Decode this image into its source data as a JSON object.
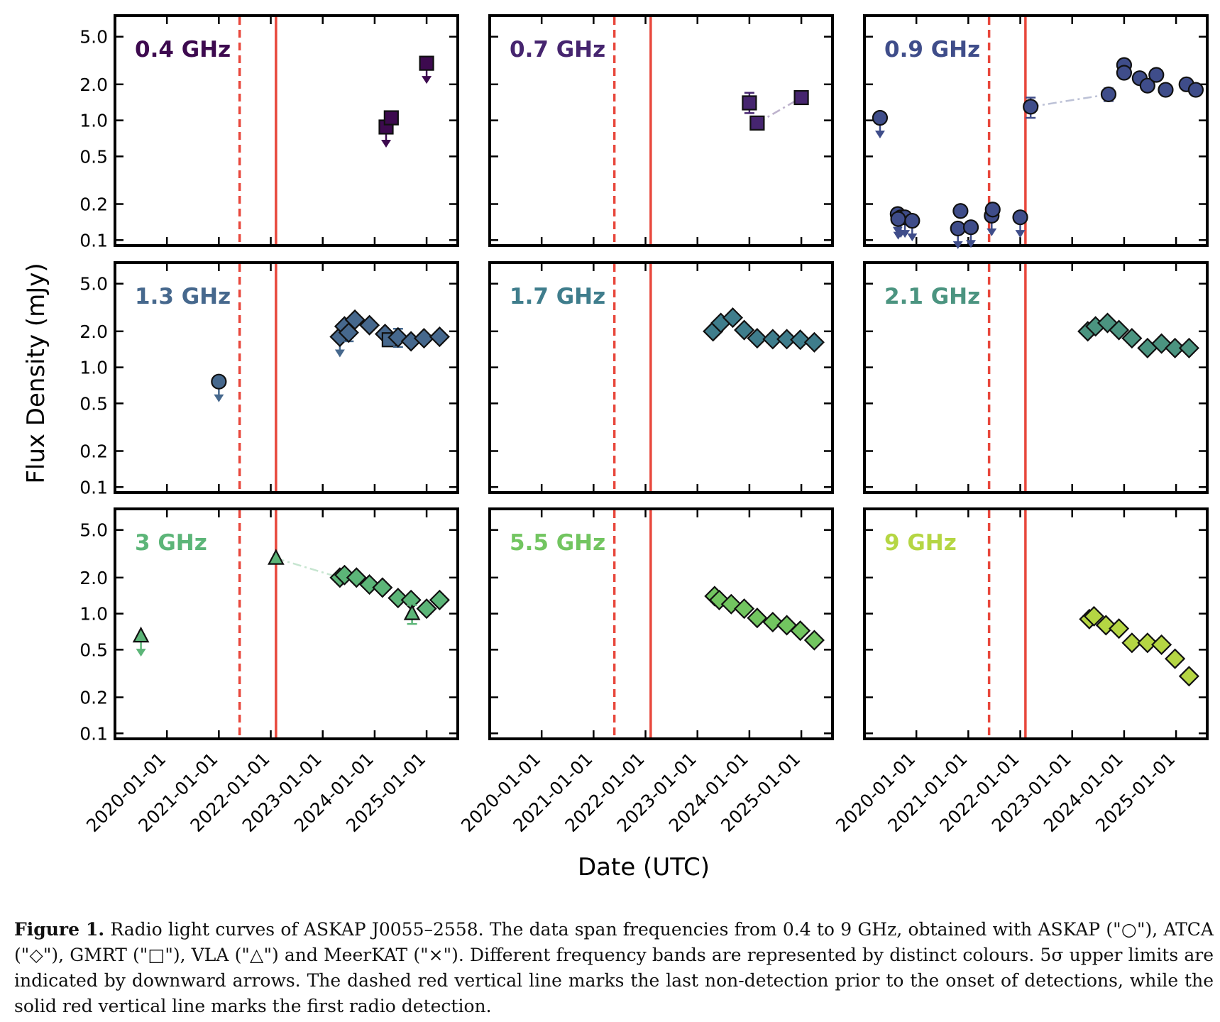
{
  "figure": {
    "caption_label": "Figure 1.",
    "caption_text": "Radio light curves of ASKAP J0055–2558. The data span frequencies from 0.4 to 9 GHz, obtained with ASKAP (\"○\"), ATCA (\"◇\"), GMRT (\"□\"), VLA (\"△\") and MeerKAT (\"×\"). Different frequency bands are represented by distinct colours. 5σ upper limits are indicated by downward arrows. The dashed red vertical line marks the last non-detection prior to the onset of detections, while the solid red vertical line marks the first radio detection."
  },
  "chart_data": {
    "type": "scatter",
    "title": "",
    "xlabel": "Date (UTC)",
    "ylabel": "Flux Density (mJy)",
    "yscale": "log",
    "xlim": [
      2019.0,
      2025.6
    ],
    "ylim": [
      0.09,
      7.5
    ],
    "x_ticks": [
      2020,
      2021,
      2022,
      2023,
      2024,
      2025
    ],
    "x_tick_labels": [
      "2020-01-01",
      "2021-01-01",
      "2022-01-01",
      "2023-01-01",
      "2024-01-01",
      "2025-01-01"
    ],
    "y_ticks": [
      0.1,
      0.2,
      0.5,
      1.0,
      2.0,
      5.0
    ],
    "y_tick_labels": [
      "0.1",
      "0.2",
      "0.5",
      "1.0",
      "2.0",
      "5.0"
    ],
    "dashed_line_date": 2021.4,
    "solid_line_date": 2022.1,
    "line_color": "#e8473c",
    "panels": [
      {
        "label": "0.4 GHz",
        "color": "#3d0a4f",
        "points": [
          {
            "x": 2024.22,
            "y": 0.88,
            "m": "square",
            "ul": true
          },
          {
            "x": 2024.32,
            "y": 1.05,
            "m": "square"
          },
          {
            "x": 2025.0,
            "y": 3.0,
            "m": "square",
            "ul": true
          }
        ]
      },
      {
        "label": "0.7 GHz",
        "color": "#46256f",
        "points": [
          {
            "x": 2024.0,
            "y": 1.4,
            "m": "square",
            "err": [
              1.15,
              1.7
            ]
          },
          {
            "x": 2024.15,
            "y": 0.95,
            "m": "square"
          },
          {
            "x": 2025.0,
            "y": 1.55,
            "m": "square"
          }
        ],
        "link": [
          1,
          2
        ]
      },
      {
        "label": "0.9 GHz",
        "color": "#3f4d8a",
        "points": [
          {
            "x": 2019.3,
            "y": 1.05,
            "m": "circle",
            "ul": true
          },
          {
            "x": 2019.64,
            "y": 0.165,
            "m": "circle",
            "ul": true
          },
          {
            "x": 2019.7,
            "y": 0.155,
            "m": "circle",
            "ul": true
          },
          {
            "x": 2019.78,
            "y": 0.155,
            "m": "circle",
            "ul": true
          },
          {
            "x": 2019.65,
            "y": 0.15,
            "m": "circle",
            "ul": true
          },
          {
            "x": 2019.92,
            "y": 0.145,
            "m": "circle",
            "ul": true
          },
          {
            "x": 2020.8,
            "y": 0.125,
            "m": "circle",
            "ul": true
          },
          {
            "x": 2020.85,
            "y": 0.175,
            "m": "circle"
          },
          {
            "x": 2021.05,
            "y": 0.128,
            "m": "circle",
            "ul": true
          },
          {
            "x": 2021.45,
            "y": 0.16,
            "m": "circle",
            "ul": true
          },
          {
            "x": 2021.47,
            "y": 0.18,
            "m": "circle"
          },
          {
            "x": 2022.0,
            "y": 0.155,
            "m": "circle",
            "ul": true
          },
          {
            "x": 2022.2,
            "y": 1.3,
            "m": "circle",
            "err": [
              1.05,
              1.55
            ]
          },
          {
            "x": 2023.7,
            "y": 1.65,
            "m": "circle",
            "err": [
              1.45,
              1.85
            ]
          },
          {
            "x": 2024.0,
            "y": 2.9,
            "m": "circle"
          },
          {
            "x": 2024.0,
            "y": 2.5,
            "m": "circle"
          },
          {
            "x": 2024.3,
            "y": 2.25,
            "m": "circle"
          },
          {
            "x": 2024.45,
            "y": 1.95,
            "m": "circle"
          },
          {
            "x": 2024.62,
            "y": 2.4,
            "m": "circle"
          },
          {
            "x": 2024.8,
            "y": 1.8,
            "m": "circle"
          },
          {
            "x": 2025.2,
            "y": 2.0,
            "m": "circle"
          },
          {
            "x": 2025.38,
            "y": 1.8,
            "m": "circle"
          }
        ],
        "link": [
          12,
          13
        ]
      },
      {
        "label": "1.3 GHz",
        "color": "#46688d",
        "points": [
          {
            "x": 2021.0,
            "y": 0.76,
            "m": "circle",
            "ul": true
          },
          {
            "x": 2023.33,
            "y": 1.8,
            "m": "diamond",
            "ul": true
          },
          {
            "x": 2023.42,
            "y": 2.2,
            "m": "diamond"
          },
          {
            "x": 2023.5,
            "y": 1.95,
            "m": "diamond",
            "err": [
              1.65,
              2.2
            ]
          },
          {
            "x": 2023.62,
            "y": 2.5,
            "m": "diamond"
          },
          {
            "x": 2023.9,
            "y": 2.25,
            "m": "diamond"
          },
          {
            "x": 2024.2,
            "y": 1.9,
            "m": "diamond"
          },
          {
            "x": 2024.28,
            "y": 1.7,
            "m": "square"
          },
          {
            "x": 2024.45,
            "y": 1.78,
            "m": "diamond",
            "err": [
              1.48,
              2.1
            ]
          },
          {
            "x": 2024.7,
            "y": 1.65,
            "m": "diamond"
          },
          {
            "x": 2024.95,
            "y": 1.75,
            "m": "diamond"
          },
          {
            "x": 2025.25,
            "y": 1.8,
            "m": "diamond"
          }
        ]
      },
      {
        "label": "1.7 GHz",
        "color": "#3f7d8c",
        "points": [
          {
            "x": 2023.3,
            "y": 2.0,
            "m": "diamond"
          },
          {
            "x": 2023.45,
            "y": 2.35,
            "m": "diamond"
          },
          {
            "x": 2023.68,
            "y": 2.6,
            "m": "diamond"
          },
          {
            "x": 2023.9,
            "y": 2.05,
            "m": "diamond"
          },
          {
            "x": 2024.15,
            "y": 1.75,
            "m": "diamond"
          },
          {
            "x": 2024.45,
            "y": 1.72,
            "m": "diamond"
          },
          {
            "x": 2024.72,
            "y": 1.72,
            "m": "diamond"
          },
          {
            "x": 2024.98,
            "y": 1.7,
            "m": "diamond"
          },
          {
            "x": 2025.25,
            "y": 1.62,
            "m": "diamond"
          }
        ]
      },
      {
        "label": "2.1 GHz",
        "color": "#4b9480",
        "points": [
          {
            "x": 2023.3,
            "y": 2.0,
            "m": "diamond"
          },
          {
            "x": 2023.45,
            "y": 2.2,
            "m": "diamond"
          },
          {
            "x": 2023.68,
            "y": 2.35,
            "m": "diamond"
          },
          {
            "x": 2023.9,
            "y": 2.05,
            "m": "diamond"
          },
          {
            "x": 2024.15,
            "y": 1.75,
            "m": "diamond"
          },
          {
            "x": 2024.45,
            "y": 1.45,
            "m": "diamond"
          },
          {
            "x": 2024.72,
            "y": 1.58,
            "m": "diamond"
          },
          {
            "x": 2024.98,
            "y": 1.45,
            "m": "diamond"
          },
          {
            "x": 2025.25,
            "y": 1.45,
            "m": "diamond"
          }
        ]
      },
      {
        "label": "3 GHz",
        "color": "#5cb578",
        "points": [
          {
            "x": 2019.5,
            "y": 0.65,
            "m": "triangle",
            "ul": true
          },
          {
            "x": 2022.1,
            "y": 2.9,
            "m": "triangle"
          },
          {
            "x": 2023.33,
            "y": 2.0,
            "m": "diamond"
          },
          {
            "x": 2023.42,
            "y": 2.1,
            "m": "diamond"
          },
          {
            "x": 2023.65,
            "y": 2.0,
            "m": "diamond"
          },
          {
            "x": 2023.9,
            "y": 1.75,
            "m": "diamond"
          },
          {
            "x": 2024.15,
            "y": 1.65,
            "m": "diamond"
          },
          {
            "x": 2024.45,
            "y": 1.35,
            "m": "diamond"
          },
          {
            "x": 2024.7,
            "y": 1.3,
            "m": "diamond"
          },
          {
            "x": 2024.72,
            "y": 1.0,
            "m": "triangle",
            "err": [
              0.82,
              1.18
            ]
          },
          {
            "x": 2025.0,
            "y": 1.1,
            "m": "diamond"
          },
          {
            "x": 2025.25,
            "y": 1.3,
            "m": "diamond"
          }
        ],
        "link": [
          1,
          2
        ]
      },
      {
        "label": "5.5 GHz",
        "color": "#72c560",
        "points": [
          {
            "x": 2023.33,
            "y": 1.4,
            "m": "diamond"
          },
          {
            "x": 2023.42,
            "y": 1.3,
            "m": "diamond"
          },
          {
            "x": 2023.65,
            "y": 1.2,
            "m": "diamond"
          },
          {
            "x": 2023.9,
            "y": 1.1,
            "m": "diamond"
          },
          {
            "x": 2024.15,
            "y": 0.92,
            "m": "diamond"
          },
          {
            "x": 2024.45,
            "y": 0.85,
            "m": "diamond"
          },
          {
            "x": 2024.72,
            "y": 0.8,
            "m": "diamond"
          },
          {
            "x": 2024.98,
            "y": 0.72,
            "m": "diamond"
          },
          {
            "x": 2025.25,
            "y": 0.6,
            "m": "diamond"
          }
        ]
      },
      {
        "label": "9 GHz",
        "color": "#b5d643",
        "points": [
          {
            "x": 2023.33,
            "y": 0.9,
            "m": "diamond"
          },
          {
            "x": 2023.42,
            "y": 0.95,
            "m": "diamond"
          },
          {
            "x": 2023.65,
            "y": 0.8,
            "m": "diamond"
          },
          {
            "x": 2023.9,
            "y": 0.75,
            "m": "diamond"
          },
          {
            "x": 2024.15,
            "y": 0.57,
            "m": "diamond"
          },
          {
            "x": 2024.45,
            "y": 0.57,
            "m": "diamond"
          },
          {
            "x": 2024.72,
            "y": 0.55,
            "m": "diamond"
          },
          {
            "x": 2024.98,
            "y": 0.42,
            "m": "diamond"
          },
          {
            "x": 2025.25,
            "y": 0.3,
            "m": "diamond"
          }
        ]
      }
    ]
  }
}
